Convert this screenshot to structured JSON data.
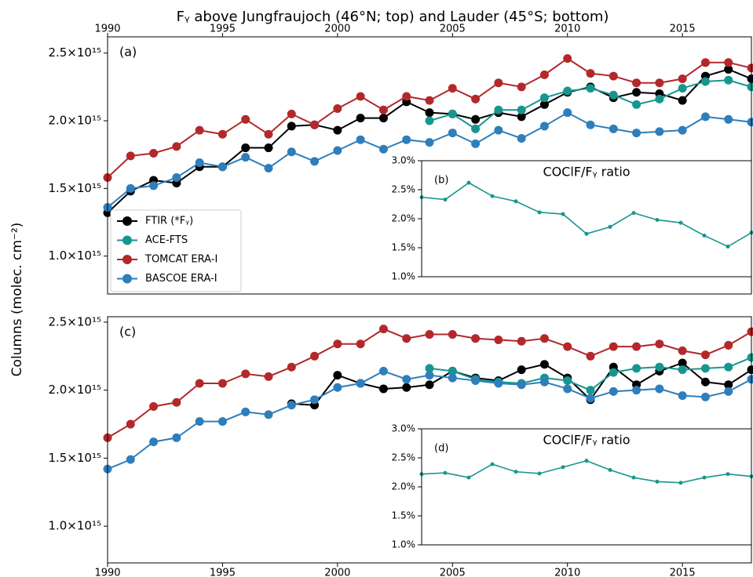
{
  "chart_data": [
    {
      "type": "line",
      "title": "Fᵧ above Jungfraujoch (46°N; top) and Lauder (45°S; bottom)",
      "ylabel": "Columns (molec. cm⁻²)",
      "label": "(a)",
      "x": [
        1990,
        1991,
        1992,
        1993,
        1994,
        1995,
        1996,
        1997,
        1998,
        1999,
        2000,
        2001,
        2002,
        2003,
        2004,
        2005,
        2006,
        2007,
        2008,
        2009,
        2010,
        2011,
        2012,
        2013,
        2014,
        2015,
        2016,
        2017,
        2018
      ],
      "xlim": [
        1990,
        2018
      ],
      "xticks": [
        1990,
        1995,
        2000,
        2005,
        2010,
        2015
      ],
      "xaxis_position": "top",
      "ylim": [
        720000000000000.0,
        2620000000000000.0
      ],
      "yticks": [
        {
          "value": 1000000000000000.0,
          "label": "1.0×10¹⁵"
        },
        {
          "value": 1500000000000000.0,
          "label": "1.5×10¹⁵"
        },
        {
          "value": 2000000000000000.0,
          "label": "2.0×10¹⁵"
        },
        {
          "value": 2500000000000000.0,
          "label": "2.5×10¹⁵"
        }
      ],
      "legend": "lower left",
      "series": [
        {
          "name": "FTIR (*Fᵧ)",
          "color": "#000000",
          "values": [
            1320000000000000.0,
            1480000000000000.0,
            1560000000000000.0,
            1540000000000000.0,
            1660000000000000.0,
            1660000000000000.0,
            1800000000000000.0,
            1800000000000000.0,
            1960000000000000.0,
            1970000000000000.0,
            1930000000000000.0,
            2020000000000000.0,
            2020000000000000.0,
            2140000000000000.0,
            2060000000000000.0,
            2050000000000000.0,
            2010000000000000.0,
            2060000000000000.0,
            2030000000000000.0,
            2120000000000000.0,
            2210000000000000.0,
            2250000000000000.0,
            2170000000000000.0,
            2210000000000000.0,
            2200000000000000.0,
            2150000000000000.0,
            2330000000000000.0,
            2380000000000000.0,
            2310000000000000.0
          ]
        },
        {
          "name": "ACE-FTS",
          "color": "#17968f",
          "values": [
            null,
            null,
            null,
            null,
            null,
            null,
            null,
            null,
            null,
            null,
            null,
            null,
            null,
            null,
            2000000000000000.0,
            2050000000000000.0,
            1940000000000000.0,
            2080000000000000.0,
            2080000000000000.0,
            2170000000000000.0,
            2220000000000000.0,
            2240000000000000.0,
            2190000000000000.0,
            2120000000000000.0,
            2160000000000000.0,
            2240000000000000.0,
            2290000000000000.0,
            2300000000000000.0,
            2250000000000000.0
          ]
        },
        {
          "name": "TOMCAT ERA-I",
          "color": "#b3282b",
          "values": [
            1580000000000000.0,
            1740000000000000.0,
            1760000000000000.0,
            1810000000000000.0,
            1930000000000000.0,
            1900000000000000.0,
            2010000000000000.0,
            1900000000000000.0,
            2050000000000000.0,
            1970000000000000.0,
            2090000000000000.0,
            2180000000000000.0,
            2080000000000000.0,
            2180000000000000.0,
            2150000000000000.0,
            2240000000000000.0,
            2160000000000000.0,
            2280000000000000.0,
            2250000000000000.0,
            2340000000000000.0,
            2460000000000000.0,
            2350000000000000.0,
            2330000000000000.0,
            2280000000000000.0,
            2280000000000000.0,
            2310000000000000.0,
            2430000000000000.0,
            2430000000000000.0,
            2390000000000000.0
          ]
        },
        {
          "name": "BASCOE ERA-I",
          "color": "#2e7ebc",
          "values": [
            1360000000000000.0,
            1500000000000000.0,
            1520000000000000.0,
            1580000000000000.0,
            1690000000000000.0,
            1660000000000000.0,
            1730000000000000.0,
            1650000000000000.0,
            1770000000000000.0,
            1700000000000000.0,
            1780000000000000.0,
            1860000000000000.0,
            1790000000000000.0,
            1860000000000000.0,
            1840000000000000.0,
            1910000000000000.0,
            1830000000000000.0,
            1930000000000000.0,
            1870000000000000.0,
            1960000000000000.0,
            2060000000000000.0,
            1970000000000000.0,
            1940000000000000.0,
            1910000000000000.0,
            1920000000000000.0,
            1930000000000000.0,
            2030000000000000.0,
            2010000000000000.0,
            1990000000000000.0
          ]
        }
      ]
    },
    {
      "type": "line",
      "title": "COClF/Fᵧ ratio",
      "label": "(b)",
      "x": [
        2004,
        2005,
        2006,
        2007,
        2008,
        2009,
        2010,
        2011,
        2012,
        2013,
        2014,
        2015,
        2016,
        2017,
        2018
      ],
      "xlim": [
        2004,
        2018
      ],
      "ylim": [
        1.0,
        3.0
      ],
      "yticks": [
        {
          "value": 1.0,
          "label": "1.0%"
        },
        {
          "value": 1.5,
          "label": "1.5%"
        },
        {
          "value": 2.0,
          "label": "2.0%"
        },
        {
          "value": 2.5,
          "label": "2.5%"
        },
        {
          "value": 3.0,
          "label": "3.0%"
        }
      ],
      "series": [
        {
          "color": "#17968f",
          "values": [
            2.37,
            2.33,
            2.62,
            2.39,
            2.3,
            2.11,
            2.08,
            1.74,
            1.86,
            2.1,
            1.98,
            1.93,
            1.71,
            1.52,
            1.76
          ]
        }
      ]
    },
    {
      "type": "line",
      "label": "(c)",
      "x": [
        1990,
        1991,
        1992,
        1993,
        1994,
        1995,
        1996,
        1997,
        1998,
        1999,
        2000,
        2001,
        2002,
        2003,
        2004,
        2005,
        2006,
        2007,
        2008,
        2009,
        2010,
        2011,
        2012,
        2013,
        2014,
        2015,
        2016,
        2017,
        2018
      ],
      "xlim": [
        1990,
        2018
      ],
      "xticks": [
        1990,
        1995,
        2000,
        2005,
        2010,
        2015
      ],
      "xaxis_position": "bottom",
      "ylim": [
        730000000000000.0,
        2540000000000000.0
      ],
      "yticks": [
        {
          "value": 1000000000000000.0,
          "label": "1.0×10¹⁵"
        },
        {
          "value": 1500000000000000.0,
          "label": "1.5×10¹⁵"
        },
        {
          "value": 2000000000000000.0,
          "label": "2.0×10¹⁵"
        },
        {
          "value": 2500000000000000.0,
          "label": "2.5×10¹⁵"
        }
      ],
      "series": [
        {
          "color": "#000000",
          "values": [
            null,
            null,
            null,
            null,
            null,
            null,
            null,
            null,
            1900000000000000.0,
            1890000000000000.0,
            2110000000000000.0,
            2050000000000000.0,
            2010000000000000.0,
            2020000000000000.0,
            2040000000000000.0,
            2140000000000000.0,
            2090000000000000.0,
            2070000000000000.0,
            2150000000000000.0,
            2190000000000000.0,
            2090000000000000.0,
            1930000000000000.0,
            2170000000000000.0,
            2040000000000000.0,
            2140000000000000.0,
            2200000000000000.0,
            2060000000000000.0,
            2040000000000000.0,
            2150000000000000.0
          ]
        },
        {
          "color": "#17968f",
          "values": [
            null,
            null,
            null,
            null,
            null,
            null,
            null,
            null,
            null,
            null,
            null,
            null,
            null,
            null,
            2160000000000000.0,
            2140000000000000.0,
            2080000000000000.0,
            2060000000000000.0,
            2050000000000000.0,
            2090000000000000.0,
            2070000000000000.0,
            2000000000000000.0,
            2130000000000000.0,
            2160000000000000.0,
            2170000000000000.0,
            2150000000000000.0,
            2160000000000000.0,
            2170000000000000.0,
            2240000000000000.0
          ]
        },
        {
          "color": "#b3282b",
          "values": [
            1650000000000000.0,
            1750000000000000.0,
            1880000000000000.0,
            1910000000000000.0,
            2050000000000000.0,
            2050000000000000.0,
            2120000000000000.0,
            2100000000000000.0,
            2170000000000000.0,
            2250000000000000.0,
            2340000000000000.0,
            2340000000000000.0,
            2450000000000000.0,
            2380000000000000.0,
            2410000000000000.0,
            2410000000000000.0,
            2380000000000000.0,
            2370000000000000.0,
            2360000000000000.0,
            2380000000000000.0,
            2320000000000000.0,
            2250000000000000.0,
            2320000000000000.0,
            2320000000000000.0,
            2340000000000000.0,
            2290000000000000.0,
            2260000000000000.0,
            2330000000000000.0,
            2430000000000000.0
          ]
        },
        {
          "color": "#2e7ebc",
          "values": [
            1420000000000000.0,
            1490000000000000.0,
            1620000000000000.0,
            1650000000000000.0,
            1770000000000000.0,
            1770000000000000.0,
            1840000000000000.0,
            1820000000000000.0,
            1890000000000000.0,
            1930000000000000.0,
            2020000000000000.0,
            2050000000000000.0,
            2140000000000000.0,
            2080000000000000.0,
            2110000000000000.0,
            2090000000000000.0,
            2070000000000000.0,
            2050000000000000.0,
            2040000000000000.0,
            2060000000000000.0,
            2010000000000000.0,
            1940000000000000.0,
            1990000000000000.0,
            2000000000000000.0,
            2010000000000000.0,
            1960000000000000.0,
            1950000000000000.0,
            1990000000000000.0,
            2080000000000000.0
          ]
        }
      ]
    },
    {
      "type": "line",
      "title": "COClF/Fᵧ ratio",
      "label": "(d)",
      "x": [
        2004,
        2005,
        2006,
        2007,
        2008,
        2009,
        2010,
        2011,
        2012,
        2013,
        2014,
        2015,
        2016,
        2017,
        2018
      ],
      "xlim": [
        2004,
        2018
      ],
      "ylim": [
        1.0,
        3.0
      ],
      "yticks": [
        {
          "value": 1.0,
          "label": "1.0%"
        },
        {
          "value": 1.5,
          "label": "1.5%"
        },
        {
          "value": 2.0,
          "label": "2.0%"
        },
        {
          "value": 2.5,
          "label": "2.5%"
        },
        {
          "value": 3.0,
          "label": "3.0%"
        }
      ],
      "series": [
        {
          "color": "#17968f",
          "values": [
            2.22,
            2.24,
            2.16,
            2.39,
            2.26,
            2.23,
            2.34,
            2.45,
            2.29,
            2.16,
            2.09,
            2.07,
            2.16,
            2.22,
            2.18
          ]
        }
      ]
    }
  ]
}
